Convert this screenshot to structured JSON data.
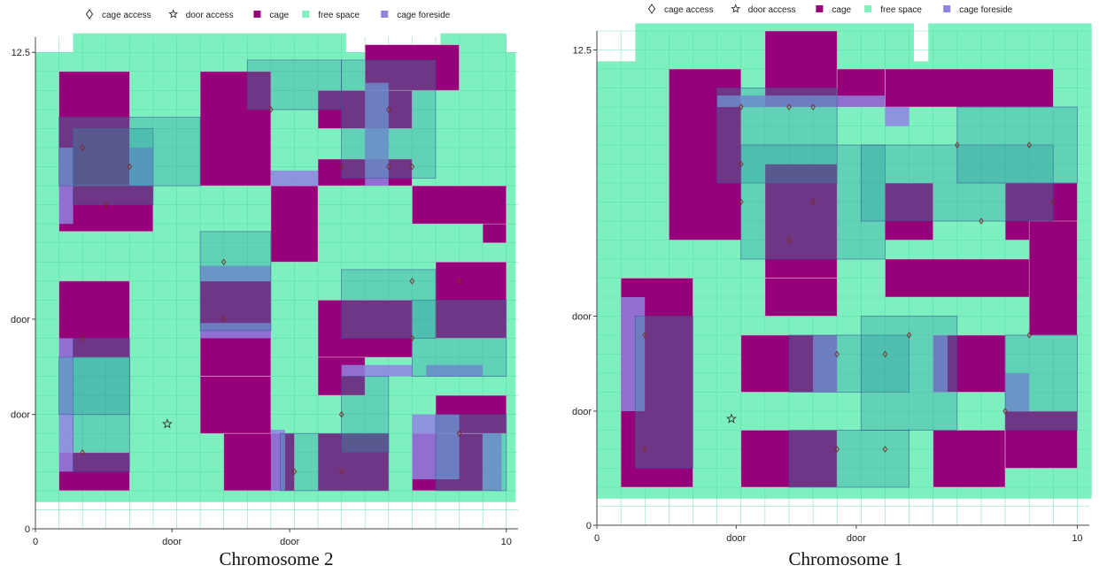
{
  "colors": {
    "cage": "#960078",
    "free_space": "#7ef0c0",
    "free_space_grid": "#4fd6a0",
    "cage_foreside": "#8f83e0",
    "overlay": "#2a9aa0",
    "access_marker": "#7a2a2a",
    "axis": "#444444"
  },
  "legend": [
    {
      "symbol": "diamond",
      "label": "cage access"
    },
    {
      "symbol": "star",
      "label": "door access"
    },
    {
      "symbol": "square-cage",
      "label": "cage"
    },
    {
      "symbol": "square-free",
      "label": "free space"
    },
    {
      "symbol": "square-foreside",
      "label": "cage foreside"
    }
  ],
  "chart_data": [
    {
      "type": "layout-map",
      "title": "Chromosome 2",
      "xlim": [
        0,
        10.25
      ],
      "ylim": [
        0,
        12.9
      ],
      "x_ticks": [
        {
          "v": 0,
          "label": "0"
        },
        {
          "v": 2.9,
          "label": "door"
        },
        {
          "v": 5.4,
          "label": "door"
        },
        {
          "v": 10,
          "label": "10"
        }
      ],
      "y_ticks": [
        {
          "v": 0,
          "label": "0"
        },
        {
          "v": 3,
          "label": "door"
        },
        {
          "v": 5.5,
          "label": "door"
        },
        {
          "v": 12.5,
          "label": "12.5"
        }
      ],
      "free_space": [
        [
          0.8,
          12.0,
          6.6,
          13.0
        ],
        [
          8.6,
          12.0,
          10.0,
          13.0
        ],
        [
          0.0,
          0.7,
          10.2,
          12.5
        ]
      ],
      "cages": [
        [
          0.5,
          9.0,
          2.0,
          12.0
        ],
        [
          0.5,
          7.8,
          2.5,
          9.0
        ],
        [
          7.0,
          11.5,
          9.0,
          12.7
        ],
        [
          3.5,
          9.0,
          5.0,
          12.0
        ],
        [
          6.0,
          10.5,
          8.0,
          11.5
        ],
        [
          6.0,
          9.0,
          8.0,
          9.7
        ],
        [
          9.5,
          7.5,
          10.0,
          8.5
        ],
        [
          5.0,
          7.0,
          6.0,
          9.0
        ],
        [
          8.0,
          8.0,
          10.0,
          9.0
        ],
        [
          0.5,
          4.5,
          2.0,
          6.5
        ],
        [
          0.5,
          1.0,
          2.0,
          2.0
        ],
        [
          3.5,
          4.0,
          5.0,
          6.5
        ],
        [
          3.5,
          2.5,
          5.0,
          4.0
        ],
        [
          6.0,
          4.5,
          8.0,
          6.0
        ],
        [
          6.0,
          3.5,
          7.0,
          4.5
        ],
        [
          4.0,
          1.0,
          5.5,
          2.5
        ],
        [
          6.0,
          1.0,
          7.5,
          2.5
        ],
        [
          8.0,
          1.0,
          9.5,
          2.5
        ],
        [
          8.5,
          2.5,
          10.0,
          3.5
        ],
        [
          8.5,
          5.0,
          10.0,
          7.0
        ]
      ],
      "foresides": [
        [
          0.5,
          8.0,
          0.8,
          10.0
        ],
        [
          2.0,
          9.0,
          2.5,
          10.0
        ],
        [
          5.0,
          9.0,
          6.0,
          9.4
        ],
        [
          7.0,
          9.0,
          7.5,
          11.7
        ],
        [
          3.5,
          6.5,
          5.0,
          6.9
        ],
        [
          3.5,
          5.0,
          5.0,
          5.4
        ],
        [
          0.5,
          1.5,
          0.8,
          5.0
        ],
        [
          5.0,
          1.0,
          5.3,
          2.6
        ],
        [
          9.5,
          1.0,
          9.9,
          2.5
        ],
        [
          8.0,
          1.3,
          9.0,
          3.0
        ],
        [
          8.3,
          4.0,
          9.5,
          4.3
        ],
        [
          6.5,
          4.0,
          8.0,
          4.3
        ]
      ],
      "overlays": [
        [
          0.8,
          8.5,
          2.5,
          10.5
        ],
        [
          0.5,
          9.0,
          3.5,
          10.8
        ],
        [
          4.5,
          11.0,
          6.5,
          12.3
        ],
        [
          6.5,
          9.2,
          8.5,
          12.3
        ],
        [
          3.5,
          5.2,
          5.0,
          7.8
        ],
        [
          0.8,
          1.5,
          2.0,
          5.0
        ],
        [
          0.5,
          3.0,
          2.0,
          4.5
        ],
        [
          8.0,
          4.0,
          10.0,
          6.0
        ],
        [
          6.5,
          5.0,
          8.5,
          6.8
        ],
        [
          5.2,
          1.0,
          7.5,
          2.5
        ],
        [
          6.5,
          2.0,
          7.5,
          4.0
        ],
        [
          8.5,
          1.0,
          10.0,
          3.0
        ]
      ],
      "cage_access": [
        [
          1.0,
          10.0
        ],
        [
          2.0,
          9.5
        ],
        [
          1.5,
          8.5
        ],
        [
          4.0,
          7.0
        ],
        [
          4.0,
          5.5
        ],
        [
          5.0,
          11.0
        ],
        [
          6.5,
          9.5
        ],
        [
          7.5,
          9.5
        ],
        [
          8.0,
          9.5
        ],
        [
          7.5,
          11.0
        ],
        [
          8.0,
          6.5
        ],
        [
          9.0,
          6.5
        ],
        [
          8.0,
          5.0
        ],
        [
          1.0,
          5.0
        ],
        [
          1.0,
          2.0
        ],
        [
          6.5,
          3.0
        ],
        [
          6.5,
          1.5
        ],
        [
          5.5,
          1.5
        ],
        [
          9.0,
          2.5
        ]
      ],
      "door_access": [
        [
          2.8,
          2.75
        ]
      ]
    },
    {
      "type": "layout-map",
      "title": "Chromosome 1",
      "xlim": [
        0,
        10.25
      ],
      "ylim": [
        0,
        13.0
      ],
      "x_ticks": [
        {
          "v": 0,
          "label": "0"
        },
        {
          "v": 2.9,
          "label": "door"
        },
        {
          "v": 5.4,
          "label": "door"
        },
        {
          "v": 10,
          "label": "10"
        }
      ],
      "y_ticks": [
        {
          "v": 0,
          "label": "0"
        },
        {
          "v": 3,
          "label": "door"
        },
        {
          "v": 5.5,
          "label": "door"
        },
        {
          "v": 12.5,
          "label": "12.5"
        }
      ],
      "free_space": [
        [
          0.8,
          12.0,
          6.6,
          13.2
        ],
        [
          6.9,
          12.0,
          10.3,
          13.2
        ],
        [
          0.0,
          0.7,
          10.3,
          12.2
        ]
      ],
      "cages": [
        [
          1.5,
          7.5,
          3.0,
          12.0
        ],
        [
          3.5,
          11.0,
          5.0,
          13.0
        ],
        [
          3.5,
          6.5,
          5.0,
          9.5
        ],
        [
          5.0,
          11.0,
          6.0,
          12.0
        ],
        [
          6.0,
          11.0,
          9.5,
          12.0
        ],
        [
          6.0,
          7.5,
          7.0,
          9.0
        ],
        [
          8.5,
          7.5,
          10.0,
          9.0
        ],
        [
          6.0,
          6.0,
          10.0,
          7.0
        ],
        [
          9.0,
          5.0,
          10.0,
          8.0
        ],
        [
          0.5,
          1.0,
          2.0,
          6.5
        ],
        [
          3.0,
          3.5,
          5.0,
          5.0
        ],
        [
          7.0,
          3.5,
          8.5,
          5.0
        ],
        [
          3.0,
          1.0,
          5.0,
          2.5
        ],
        [
          7.0,
          1.0,
          8.5,
          2.5
        ],
        [
          8.5,
          1.5,
          10.0,
          3.0
        ],
        [
          3.5,
          5.5,
          5.0,
          6.5
        ]
      ],
      "foresides": [
        [
          2.5,
          11.0,
          5.0,
          11.3
        ],
        [
          5.0,
          11.0,
          6.0,
          11.3
        ],
        [
          6.0,
          10.5,
          6.5,
          11.0
        ],
        [
          0.5,
          3.0,
          1.0,
          6.0
        ],
        [
          4.5,
          3.5,
          5.0,
          5.0
        ],
        [
          7.0,
          3.5,
          7.3,
          5.0
        ],
        [
          8.5,
          3.0,
          9.0,
          4.0
        ]
      ],
      "overlays": [
        [
          2.5,
          9.0,
          5.0,
          11.5
        ],
        [
          3.0,
          7.0,
          6.0,
          10.0
        ],
        [
          5.5,
          8.0,
          9.5,
          10.0
        ],
        [
          7.5,
          9.0,
          10.0,
          11.0
        ],
        [
          0.8,
          1.5,
          2.0,
          5.5
        ],
        [
          4.0,
          3.5,
          6.5,
          5.0
        ],
        [
          5.5,
          2.5,
          7.5,
          5.5
        ],
        [
          8.5,
          2.5,
          10.0,
          5.0
        ],
        [
          4.0,
          1.0,
          6.5,
          2.5
        ]
      ],
      "cage_access": [
        [
          3.0,
          11.0
        ],
        [
          4.0,
          11.0
        ],
        [
          4.5,
          11.0
        ],
        [
          3.0,
          9.5
        ],
        [
          3.0,
          8.5
        ],
        [
          4.5,
          8.5
        ],
        [
          4.0,
          7.5
        ],
        [
          7.5,
          10.0
        ],
        [
          9.0,
          10.0
        ],
        [
          8.0,
          8.0
        ],
        [
          9.5,
          8.5
        ],
        [
          1.0,
          5.0
        ],
        [
          1.0,
          2.0
        ],
        [
          5.0,
          4.5
        ],
        [
          6.0,
          4.5
        ],
        [
          6.5,
          5.0
        ],
        [
          9.0,
          5.0
        ],
        [
          8.5,
          3.0
        ],
        [
          5.0,
          2.0
        ],
        [
          6.0,
          2.0
        ]
      ],
      "door_access": [
        [
          2.8,
          2.8
        ]
      ]
    }
  ]
}
